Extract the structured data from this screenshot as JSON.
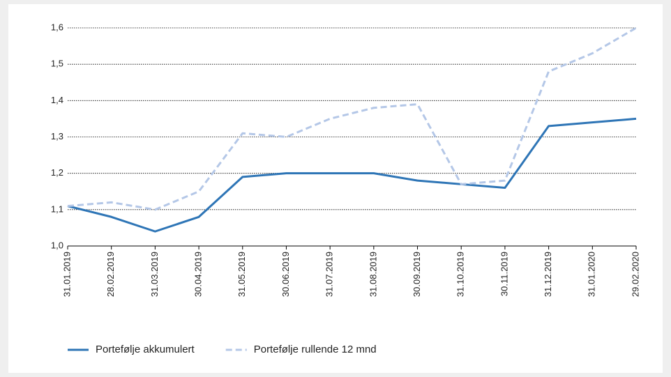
{
  "chart_data": {
    "type": "line",
    "categories": [
      "31.01.2019",
      "28.02.2019",
      "31.03.2019",
      "30.04.2019",
      "31.05.2019",
      "30.06.2019",
      "31.07.2019",
      "31.08.2019",
      "30.09.2019",
      "31.10.2019",
      "30.11.2019",
      "31.12.2019",
      "31.01.2020",
      "29.02.2020"
    ],
    "series": [
      {
        "name": "Portefølje akkumulert",
        "color": "#2e75b6",
        "values": [
          1.11,
          1.08,
          1.04,
          1.08,
          1.19,
          1.2,
          1.2,
          1.2,
          1.18,
          1.17,
          1.16,
          1.33,
          1.34,
          1.35
        ]
      },
      {
        "name": "Portefølje rullende 12 mnd",
        "color": "#b4c7e7",
        "dashed": true,
        "values": [
          1.11,
          1.12,
          1.1,
          1.15,
          1.31,
          1.3,
          1.35,
          1.38,
          1.39,
          1.17,
          1.18,
          1.48,
          1.53,
          1.6
        ]
      }
    ],
    "ylim": [
      1.0,
      1.6
    ],
    "yticks": [
      {
        "value": 1.0,
        "label": "1,0"
      },
      {
        "value": 1.1,
        "label": "1,1"
      },
      {
        "value": 1.2,
        "label": "1,2"
      },
      {
        "value": 1.3,
        "label": "1,3"
      },
      {
        "value": 1.4,
        "label": "1,4"
      },
      {
        "value": 1.5,
        "label": "1,5"
      },
      {
        "value": 1.6,
        "label": "1,6"
      }
    ],
    "grid": true,
    "legend": "bottom"
  }
}
